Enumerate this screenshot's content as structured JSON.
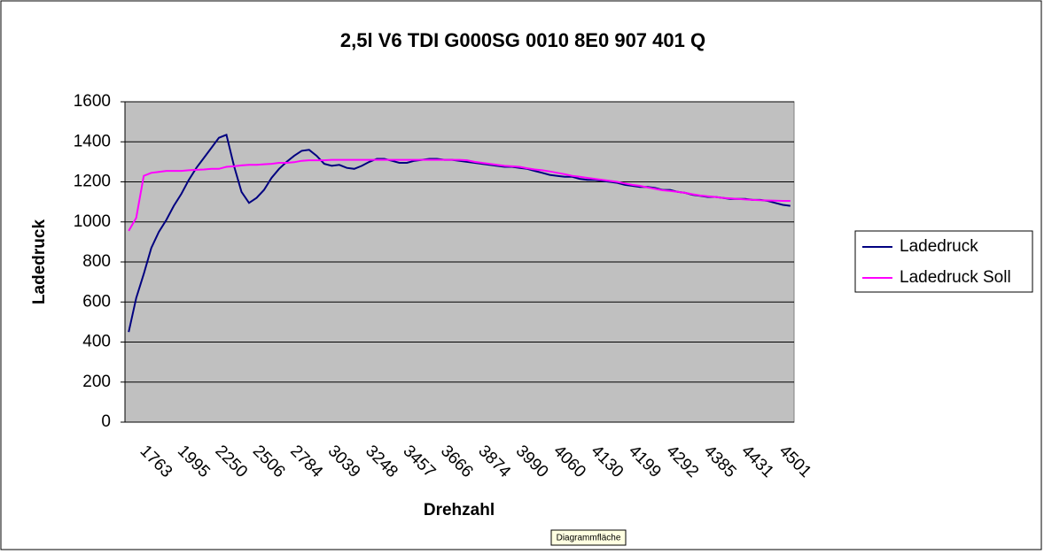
{
  "chart_data": {
    "type": "line",
    "title": "2,5l V6 TDI G000SG  0010 8E0 907 401 Q",
    "x_label": "Drehzahl",
    "y_label": "Ladedruck",
    "categories": [
      null,
      null,
      null,
      "1763",
      null,
      null,
      null,
      null,
      "1995",
      null,
      null,
      null,
      null,
      "2250",
      null,
      null,
      null,
      null,
      "2506",
      null,
      null,
      null,
      null,
      "2784",
      null,
      null,
      null,
      null,
      "3039",
      null,
      null,
      null,
      null,
      "3248",
      null,
      null,
      null,
      null,
      "3457",
      null,
      null,
      null,
      null,
      "3666",
      null,
      null,
      null,
      null,
      "3874",
      null,
      null,
      null,
      null,
      "3990",
      null,
      null,
      null,
      null,
      "4060",
      null,
      null,
      null,
      null,
      "4130",
      null,
      null,
      null,
      null,
      "4199",
      null,
      null,
      null,
      null,
      "4292",
      null,
      null,
      null,
      null,
      "4385",
      null,
      null,
      null,
      null,
      "4431",
      null,
      null,
      null,
      null,
      "4501"
    ],
    "series": [
      {
        "name": "Ladedruck",
        "color": "#000080",
        "values": [
          450,
          620,
          740,
          870,
          950,
          1010,
          1080,
          1140,
          1210,
          1270,
          1320,
          1370,
          1420,
          1435,
          1280,
          1150,
          1095,
          1120,
          1160,
          1220,
          1265,
          1300,
          1330,
          1355,
          1360,
          1330,
          1290,
          1280,
          1285,
          1270,
          1265,
          1280,
          1300,
          1315,
          1315,
          1305,
          1295,
          1295,
          1305,
          1310,
          1315,
          1315,
          1310,
          1310,
          1305,
          1300,
          1295,
          1290,
          1285,
          1280,
          1275,
          1275,
          1270,
          1265,
          1255,
          1245,
          1235,
          1230,
          1225,
          1225,
          1215,
          1210,
          1210,
          1205,
          1200,
          1195,
          1185,
          1180,
          1175,
          1175,
          1170,
          1160,
          1160,
          1150,
          1145,
          1135,
          1130,
          1125,
          1125,
          1120,
          1115,
          1115,
          1115,
          1110,
          1110,
          1105,
          1095,
          1085,
          1080
        ]
      },
      {
        "name": "Ladedruck Soll",
        "color": "#ff00ff",
        "values": [
          955,
          1020,
          1230,
          1245,
          1250,
          1255,
          1255,
          1255,
          1258,
          1260,
          1262,
          1265,
          1265,
          1275,
          1278,
          1282,
          1285,
          1285,
          1288,
          1290,
          1295,
          1295,
          1298,
          1305,
          1308,
          1308,
          1308,
          1310,
          1310,
          1310,
          1310,
          1310,
          1310,
          1310,
          1310,
          1310,
          1310,
          1310,
          1310,
          1310,
          1310,
          1310,
          1310,
          1310,
          1310,
          1308,
          1300,
          1295,
          1290,
          1285,
          1280,
          1278,
          1275,
          1268,
          1262,
          1258,
          1252,
          1245,
          1238,
          1230,
          1225,
          1220,
          1215,
          1210,
          1205,
          1200,
          1192,
          1185,
          1180,
          1172,
          1165,
          1158,
          1155,
          1150,
          1145,
          1138,
          1132,
          1128,
          1125,
          1120,
          1118,
          1115,
          1112,
          1110,
          1108,
          1107,
          1106,
          1105,
          1105
        ]
      }
    ],
    "ylim": [
      0,
      1600
    ],
    "yticks": [
      0,
      200,
      400,
      600,
      800,
      1000,
      1200,
      1400,
      1600
    ],
    "grid": true,
    "plot_background": "#c0c0c0",
    "legend": "right",
    "tooltip": "Diagrammfläche"
  }
}
